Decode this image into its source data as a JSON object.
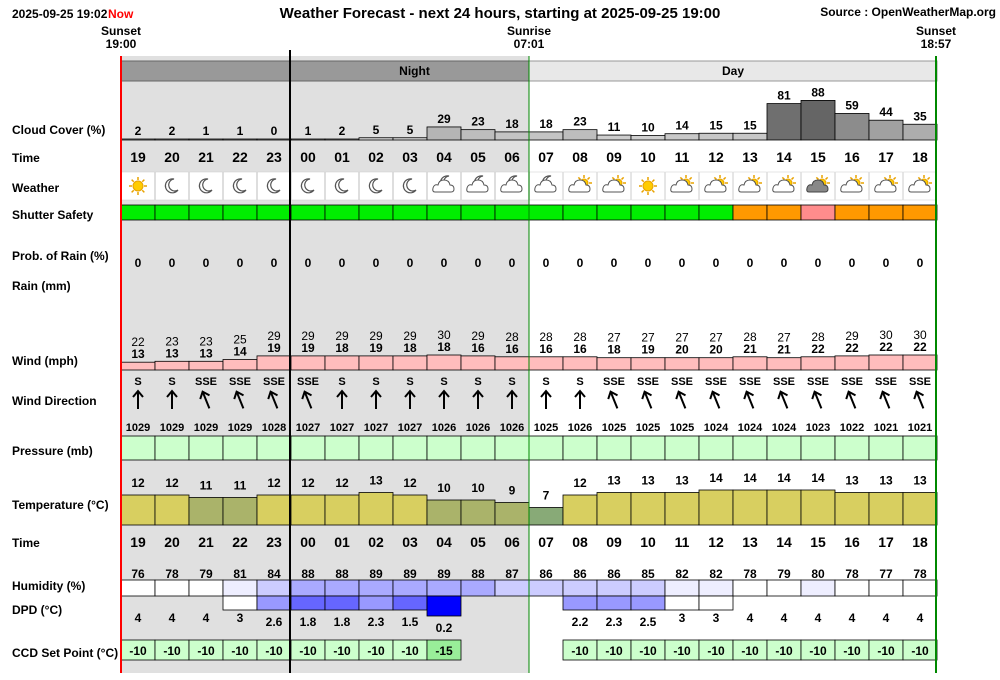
{
  "header": {
    "timestamp": "2025-09-25 19:02",
    "now_label": "Now",
    "title": "Weather Forecast - next 24 hours, starting at 2025-09-25 19:00",
    "source": "Source : OpenWeatherMap.org",
    "sunset_label": "Sunset",
    "sunset_time": "19:00",
    "sunrise_label": "Sunrise",
    "sunrise_time": "07:01",
    "sunset2_label": "Sunset",
    "sunset2_time": "18:57"
  },
  "periods": {
    "night": "Night",
    "day": "Day"
  },
  "row_labels": {
    "cloud": "Cloud Cover (%)",
    "time": "Time",
    "weather": "Weather",
    "shutter": "Shutter Safety",
    "prob_rain": "Prob. of Rain (%)",
    "rain": "Rain (mm)",
    "wind": "Wind (mph)",
    "wind_dir": "Wind Direction",
    "pressure": "Pressure (mb)",
    "temperature": "Temperature (°C)",
    "time2": "Time",
    "humidity": "Humidity (%)",
    "dpd": "DPD (°C)",
    "ccd": "CCD Set Point (°C)"
  },
  "colors": {
    "night_bg": "#e0e0e0",
    "day_bg": "#ffffff",
    "shutter_green": "#00ee00",
    "shutter_orange": "#ff9900",
    "shutter_pink": "#ff8c8c",
    "wind_fill": "#ffbdbd",
    "pressure_fill": "#ccffcc",
    "ccd_fill": "#ccffcc",
    "ccd_highlight": "#99ee99",
    "now_red": "#ff0000",
    "sun_line_green": "#008800"
  },
  "chart_data": {
    "type": "table",
    "hours": [
      "19",
      "20",
      "21",
      "22",
      "23",
      "00",
      "01",
      "02",
      "03",
      "04",
      "05",
      "06",
      "07",
      "08",
      "09",
      "10",
      "11",
      "12",
      "13",
      "14",
      "15",
      "16",
      "17",
      "18"
    ],
    "cloud_cover": [
      2,
      2,
      1,
      1,
      0,
      1,
      2,
      5,
      5,
      29,
      23,
      18,
      18,
      23,
      11,
      10,
      14,
      15,
      15,
      81,
      88,
      59,
      44,
      35
    ],
    "weather_icons": [
      "sun-icon",
      "moon-icon",
      "moon-icon",
      "moon-icon",
      "moon-icon",
      "moon-icon",
      "moon-icon",
      "moon-icon",
      "moon-icon",
      "cloud-moon-icon",
      "cloud-moon-icon",
      "cloud-moon-icon",
      "cloud-moon-icon",
      "cloud-sun-icon",
      "cloud-sun-icon",
      "sun-icon",
      "cloud-sun-icon",
      "cloud-sun-icon",
      "cloud-sun-icon",
      "cloud-sun-icon",
      "dark-cloud-sun-icon",
      "cloud-sun-icon",
      "cloud-sun-icon",
      "cloud-sun-icon"
    ],
    "shutter_safety": [
      "green",
      "green",
      "green",
      "green",
      "green",
      "green",
      "green",
      "green",
      "green",
      "green",
      "green",
      "green",
      "green",
      "green",
      "green",
      "green",
      "green",
      "green",
      "orange",
      "orange",
      "pink",
      "orange",
      "orange",
      "orange"
    ],
    "prob_rain": [
      0,
      0,
      0,
      0,
      0,
      0,
      0,
      0,
      0,
      0,
      0,
      0,
      0,
      0,
      0,
      0,
      0,
      0,
      0,
      0,
      0,
      0,
      0,
      0
    ],
    "wind_speed": [
      13,
      13,
      13,
      14,
      19,
      19,
      18,
      19,
      18,
      18,
      16,
      16,
      16,
      16,
      18,
      19,
      20,
      20,
      21,
      21,
      22,
      22,
      22,
      22
    ],
    "wind_gust": [
      22,
      23,
      23,
      25,
      29,
      29,
      29,
      29,
      29,
      30,
      29,
      28,
      28,
      28,
      27,
      27,
      27,
      27,
      28,
      27,
      28,
      29,
      30,
      30
    ],
    "wind_dir": [
      "S",
      "S",
      "SSE",
      "SSE",
      "SSE",
      "SSE",
      "S",
      "S",
      "S",
      "S",
      "S",
      "S",
      "S",
      "S",
      "SSE",
      "SSE",
      "SSE",
      "SSE",
      "SSE",
      "SSE",
      "SSE",
      "SSE",
      "SSE",
      "SSE"
    ],
    "wind_deg": [
      0,
      0,
      -22,
      -22,
      -22,
      -22,
      0,
      0,
      0,
      0,
      0,
      0,
      0,
      0,
      -22,
      -22,
      -22,
      -22,
      -22,
      -22,
      -22,
      -22,
      -22,
      -22
    ],
    "pressure": [
      1029,
      1029,
      1029,
      1029,
      1028,
      1027,
      1027,
      1027,
      1027,
      1026,
      1026,
      1026,
      1025,
      1026,
      1025,
      1025,
      1025,
      1024,
      1024,
      1024,
      1023,
      1022,
      1021,
      1021
    ],
    "temperature": [
      12,
      12,
      11,
      11,
      12,
      12,
      12,
      13,
      12,
      10,
      10,
      9,
      7,
      12,
      13,
      13,
      13,
      14,
      14,
      14,
      14,
      13,
      13,
      13
    ],
    "humidity": [
      76,
      78,
      79,
      81,
      84,
      88,
      88,
      89,
      89,
      89,
      88,
      87,
      86,
      86,
      86,
      85,
      82,
      82,
      78,
      79,
      80,
      78,
      77,
      78
    ],
    "dpd": [
      "4",
      "4",
      "4",
      "3",
      "2.6",
      "1.8",
      "1.8",
      "2.3",
      "1.5",
      "0.2",
      "",
      "",
      "",
      "2.2",
      "2.3",
      "2.5",
      "3",
      "3",
      "4",
      "4",
      "4",
      "4",
      "4",
      "4"
    ],
    "ccd_set_point": [
      "-10",
      "-10",
      "-10",
      "-10",
      "-10",
      "-10",
      "-10",
      "-10",
      "-10",
      "-15",
      "",
      "",
      "",
      "-10",
      "-10",
      "-10",
      "-10",
      "-10",
      "-10",
      "-10",
      "-10",
      "-10",
      "-10",
      "-10"
    ]
  }
}
